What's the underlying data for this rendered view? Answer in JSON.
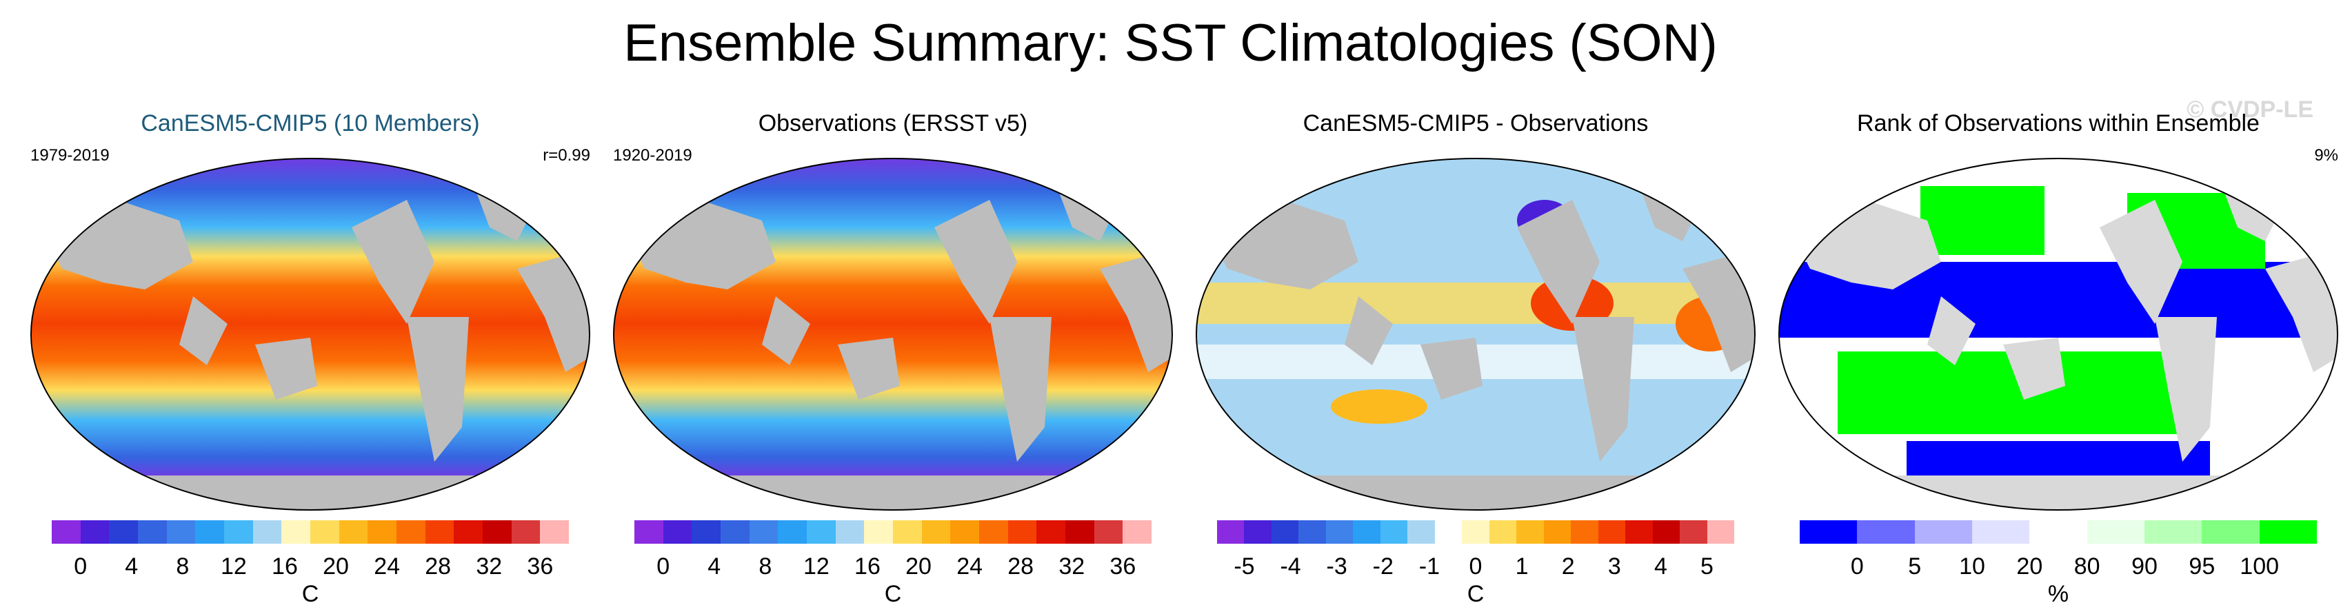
{
  "title": "Ensemble Summary: SST Climatologies (SON)",
  "watermark": "© CVDP-LE",
  "panels": [
    {
      "title": "CanESM5-CMIP5 (10 Members)",
      "title_color": "#1d5a7a",
      "left_label": "1979-2019",
      "right_label": "r=0.99",
      "colorbar": {
        "colors": [
          "#8a2be2",
          "#4b20d8",
          "#2a3fd6",
          "#3564e0",
          "#3f82ea",
          "#2aa0f4",
          "#45b8f8",
          "#a8d6f2",
          "#fff7bd",
          "#fedc5a",
          "#fdba1f",
          "#fd9a08",
          "#fb6e05",
          "#f44103",
          "#e01202",
          "#c70000",
          "#d9393a",
          "#ffb3b3"
        ],
        "ticks": [
          "0",
          "4",
          "8",
          "12",
          "16",
          "20",
          "24",
          "28",
          "32",
          "36"
        ],
        "unit": "C"
      }
    },
    {
      "title": "Observations (ERSST v5)",
      "title_color": "#000000",
      "left_label": "1920-2019",
      "right_label": "",
      "colorbar": {
        "colors": [
          "#8a2be2",
          "#4b20d8",
          "#2a3fd6",
          "#3564e0",
          "#3f82ea",
          "#2aa0f4",
          "#45b8f8",
          "#a8d6f2",
          "#fff7bd",
          "#fedc5a",
          "#fdba1f",
          "#fd9a08",
          "#fb6e05",
          "#f44103",
          "#e01202",
          "#c70000",
          "#d9393a",
          "#ffb3b3"
        ],
        "ticks": [
          "0",
          "4",
          "8",
          "12",
          "16",
          "20",
          "24",
          "28",
          "32",
          "36"
        ],
        "unit": "C"
      }
    },
    {
      "title": "CanESM5-CMIP5 - Observations",
      "title_color": "#000000",
      "left_label": "",
      "right_label": "",
      "colorbar": {
        "colors": [
          "#8a2be2",
          "#4b20d8",
          "#2a3fd6",
          "#3564e0",
          "#3f82ea",
          "#2aa0f4",
          "#45b8f8",
          "#a8d6f2",
          "#ffffff",
          "#fff7bd",
          "#fedc5a",
          "#fdba1f",
          "#fd9a08",
          "#fb6e05",
          "#f44103",
          "#e01202",
          "#c70000",
          "#d9393a",
          "#ffb3b3"
        ],
        "ticks": [
          "-5",
          "-4",
          "-3",
          "-2",
          "-1",
          "0",
          "1",
          "2",
          "3",
          "4",
          "5"
        ],
        "unit": "C"
      }
    },
    {
      "title": "Rank of Observations within Ensemble",
      "title_color": "#000000",
      "left_label": "",
      "right_label": "9%",
      "colorbar": {
        "colors": [
          "#0000ff",
          "#6a6aff",
          "#b0b0ff",
          "#e0e0ff",
          "#ffffff",
          "#e8ffe8",
          "#b8ffb8",
          "#80ff80",
          "#00ff00"
        ],
        "ticks": [
          "0",
          "5",
          "10",
          "20",
          "80",
          "90",
          "95",
          "100"
        ],
        "unit": "%"
      }
    }
  ]
}
